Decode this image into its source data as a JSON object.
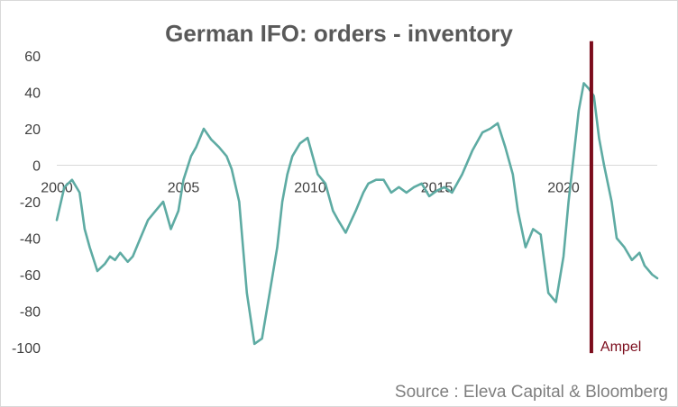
{
  "chart_data": {
    "type": "line",
    "title": "German IFO: orders - inventory",
    "xlabel": "",
    "ylabel": "",
    "xlim": [
      2000,
      2023.7
    ],
    "ylim": [
      -100,
      60
    ],
    "yticks": [
      60,
      40,
      20,
      0,
      -20,
      -40,
      -60,
      -80,
      -100
    ],
    "xticks": [
      2000,
      2005,
      2010,
      2015,
      2020
    ],
    "grid": false,
    "legend": "none",
    "series": [
      {
        "name": "IFO orders - inventory",
        "color": "#5eaba3",
        "x": [
          2000.0,
          2000.3,
          2000.6,
          2000.9,
          2001.1,
          2001.3,
          2001.6,
          2001.9,
          2002.1,
          2002.3,
          2002.5,
          2002.8,
          2003.0,
          2003.3,
          2003.6,
          2003.9,
          2004.2,
          2004.5,
          2004.8,
          2005.0,
          2005.3,
          2005.5,
          2005.8,
          2006.1,
          2006.4,
          2006.7,
          2006.9,
          2007.2,
          2007.5,
          2007.8,
          2008.1,
          2008.4,
          2008.7,
          2008.9,
          2009.1,
          2009.3,
          2009.6,
          2009.9,
          2010.1,
          2010.3,
          2010.6,
          2010.9,
          2011.1,
          2011.4,
          2011.8,
          2012.1,
          2012.3,
          2012.6,
          2012.9,
          2013.2,
          2013.5,
          2013.8,
          2014.1,
          2014.4,
          2014.7,
          2015.0,
          2015.3,
          2015.6,
          2016.0,
          2016.4,
          2016.8,
          2017.1,
          2017.4,
          2017.7,
          2018.0,
          2018.2,
          2018.5,
          2018.8,
          2019.1,
          2019.4,
          2019.7,
          2020.0,
          2020.2,
          2020.4,
          2020.6,
          2020.8,
          2021.0,
          2021.2,
          2021.4,
          2021.6,
          2021.9,
          2022.1,
          2022.4,
          2022.7,
          2023.0,
          2023.2,
          2023.5,
          2023.7
        ],
        "values": [
          -30,
          -12,
          -8,
          -15,
          -35,
          -45,
          -58,
          -54,
          -50,
          -52,
          -48,
          -53,
          -50,
          -40,
          -30,
          -25,
          -20,
          -35,
          -25,
          -8,
          5,
          10,
          20,
          14,
          10,
          5,
          -2,
          -20,
          -70,
          -98,
          -95,
          -70,
          -45,
          -20,
          -5,
          5,
          12,
          15,
          5,
          -5,
          -10,
          -25,
          -30,
          -37,
          -25,
          -15,
          -10,
          -8,
          -8,
          -15,
          -12,
          -15,
          -12,
          -10,
          -17,
          -14,
          -12,
          -15,
          -5,
          8,
          18,
          20,
          23,
          10,
          -5,
          -25,
          -45,
          -35,
          -38,
          -70,
          -75,
          -50,
          -20,
          5,
          30,
          45,
          42,
          38,
          15,
          0,
          -20,
          -40,
          -45,
          -52,
          -48,
          -55,
          -60,
          -62
        ]
      }
    ],
    "annotations": [
      {
        "type": "vline",
        "x": 2021.1,
        "y_from": 68,
        "y_to": -103,
        "color": "#7b0c1c",
        "label": "Ampel"
      }
    ],
    "source": "Source : Eleva Capital & Bloomberg"
  }
}
